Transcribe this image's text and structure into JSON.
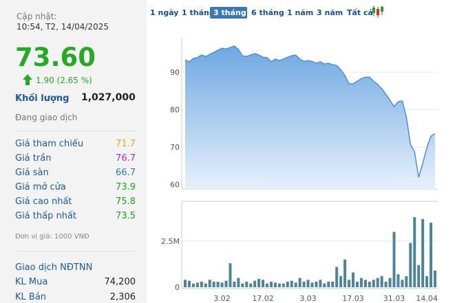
{
  "header": {
    "updated_label": "Cập nhật:",
    "updated_time": "10:54, T2, 14/04/2025"
  },
  "quote": {
    "price": "73.60",
    "change": "1.90 (2.65 %)",
    "volume_label": "Khối lượng",
    "volume": "1,027,000",
    "status": "Đang giao dịch"
  },
  "prices": [
    {
      "label": "Giá tham chiếu",
      "value": "71.7",
      "color": "#f0a020"
    },
    {
      "label": "Giá trần",
      "value": "76.7",
      "color": "#d020d0"
    },
    {
      "label": "Giá sàn",
      "value": "66.7",
      "color": "#2a7a9a"
    },
    {
      "label": "Giá mở cửa",
      "value": "73.9",
      "color": "#22a022"
    },
    {
      "label": "Giá cao nhất",
      "value": "75.8",
      "color": "#22a022"
    },
    {
      "label": "Giá thấp nhất",
      "value": "73.5",
      "color": "#22a022"
    }
  ],
  "unit_note": "Đơn vị giá: 1000 VNĐ",
  "foreign": {
    "title": "Giao dịch NĐTNN",
    "rows": [
      {
        "label": "KL Mua",
        "value": "74,200"
      },
      {
        "label": "KL Bán",
        "value": "2,306"
      }
    ]
  },
  "tabs": [
    "1 ngày",
    "1 tháng",
    "3 tháng",
    "6 tháng",
    "1 năm",
    "3 năm",
    "Tất cả"
  ],
  "selected_tab": 2,
  "chart_data": [
    {
      "type": "area",
      "color": "#4a8fd8",
      "values": [
        93.3,
        92.8,
        93.7,
        93.9,
        94.6,
        94.2,
        94.8,
        95.3,
        95.9,
        96.4,
        96.2,
        96.6,
        97.0,
        96.1,
        94.4,
        94.2,
        94.6,
        95.0,
        94.6,
        94.0,
        93.9,
        92.8,
        93.5,
        93.1,
        93.5,
        94.0,
        94.4,
        94.6,
        93.5,
        92.9,
        93.1,
        92.9,
        92.4,
        92.8,
        92.2,
        92.4,
        92.0,
        91.8,
        90.7,
        89.1,
        86.9,
        86.9,
        87.6,
        88.3,
        88.7,
        88.7,
        87.6,
        86.7,
        85.6,
        84.1,
        82.5,
        80.8,
        82.1,
        82.3,
        78.1,
        70.7,
        68.7,
        61.9,
        65.6,
        69.8,
        72.9,
        73.6
      ],
      "ylim": [
        58.8,
        99.2
      ],
      "yticks": [
        60,
        70,
        80,
        90
      ],
      "grid": true
    },
    {
      "type": "bar",
      "color": "#4f8397",
      "categories": [
        null,
        null,
        null,
        null,
        null,
        null,
        null,
        null,
        null,
        "3.02",
        null,
        null,
        null,
        null,
        null,
        null,
        null,
        null,
        null,
        "17.02",
        null,
        null,
        null,
        null,
        null,
        null,
        null,
        null,
        null,
        null,
        "3.03",
        null,
        null,
        null,
        null,
        null,
        null,
        null,
        null,
        null,
        null,
        "17.03",
        null,
        null,
        null,
        null,
        null,
        null,
        null,
        null,
        null,
        "31.03",
        null,
        null,
        null,
        null,
        null,
        null,
        null,
        "14.04",
        null,
        null
      ],
      "values": [
        400000,
        350000,
        200000,
        250000,
        300000,
        200000,
        400000,
        300000,
        300000,
        250000,
        350000,
        1300000,
        300000,
        500000,
        200000,
        300000,
        200000,
        350000,
        450000,
        400000,
        200000,
        300000,
        250000,
        200000,
        200000,
        300000,
        350000,
        250000,
        500000,
        300000,
        400000,
        250000,
        300000,
        400000,
        200000,
        300000,
        300000,
        1100000,
        600000,
        1500000,
        400000,
        800000,
        300000,
        500000,
        400000,
        300000,
        400000,
        500000,
        600000,
        300000,
        500000,
        3000000,
        700000,
        400000,
        600000,
        2400000,
        3800000,
        1200000,
        3700000,
        600000,
        3500000,
        900000
      ],
      "ylim": [
        0,
        4660000
      ],
      "yticks": [
        0,
        {
          "value": 2500000,
          "label": "2.5M"
        }
      ],
      "grid": true
    }
  ]
}
